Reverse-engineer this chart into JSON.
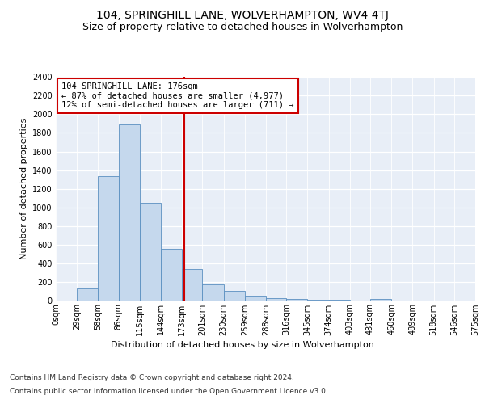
{
  "title": "104, SPRINGHILL LANE, WOLVERHAMPTON, WV4 4TJ",
  "subtitle": "Size of property relative to detached houses in Wolverhampton",
  "xlabel": "Distribution of detached houses by size in Wolverhampton",
  "ylabel": "Number of detached properties",
  "footer_line1": "Contains HM Land Registry data © Crown copyright and database right 2024.",
  "footer_line2": "Contains public sector information licensed under the Open Government Licence v3.0.",
  "annotation_line1": "104 SPRINGHILL LANE: 176sqm",
  "annotation_line2": "← 87% of detached houses are smaller (4,977)",
  "annotation_line3": "12% of semi-detached houses are larger (711) →",
  "property_size": 176,
  "bin_edges": [
    0,
    29,
    58,
    86,
    115,
    144,
    173,
    201,
    230,
    259,
    288,
    316,
    345,
    374,
    403,
    431,
    460,
    489,
    518,
    546,
    575
  ],
  "bin_labels": [
    "0sqm",
    "29sqm",
    "58sqm",
    "86sqm",
    "115sqm",
    "144sqm",
    "173sqm",
    "201sqm",
    "230sqm",
    "259sqm",
    "288sqm",
    "316sqm",
    "345sqm",
    "374sqm",
    "403sqm",
    "431sqm",
    "460sqm",
    "489sqm",
    "518sqm",
    "546sqm",
    "575sqm"
  ],
  "bar_values": [
    5,
    130,
    1340,
    1890,
    1050,
    560,
    340,
    175,
    110,
    55,
    30,
    20,
    15,
    10,
    5,
    25,
    5,
    5,
    5,
    5
  ],
  "bar_color": "#c5d8ed",
  "bar_edge_color": "#5a8fc0",
  "vline_color": "#cc0000",
  "vline_x": 176,
  "annotation_box_color": "#cc0000",
  "background_color": "#e8eef7",
  "ylim": [
    0,
    2400
  ],
  "yticks": [
    0,
    200,
    400,
    600,
    800,
    1000,
    1200,
    1400,
    1600,
    1800,
    2000,
    2200,
    2400
  ],
  "title_fontsize": 10,
  "subtitle_fontsize": 9,
  "label_fontsize": 8,
  "tick_fontsize": 7,
  "footer_fontsize": 6.5,
  "annotation_fontsize": 7.5
}
